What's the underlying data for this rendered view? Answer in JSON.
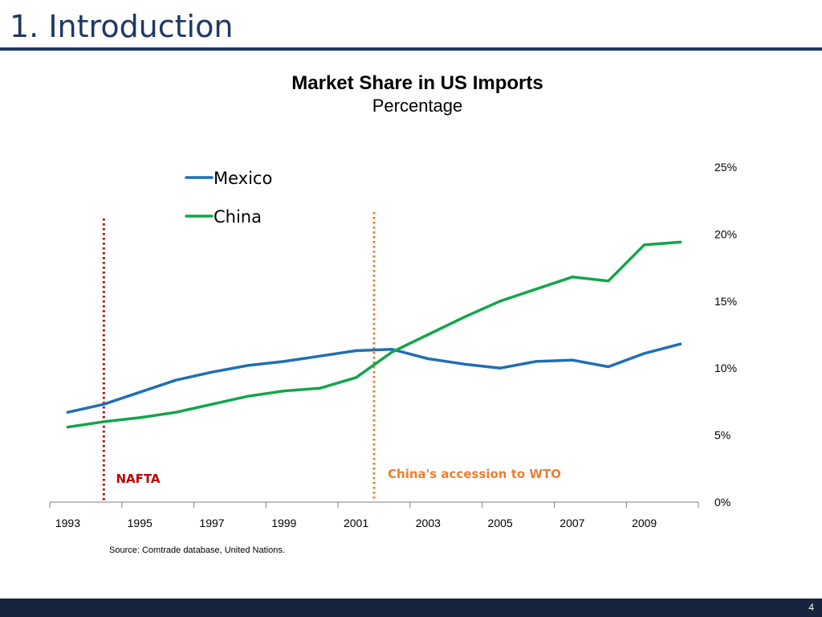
{
  "slide": {
    "title": "1. Introduction",
    "source": "Source: Comtrade database, United Nations.",
    "page_number": "4"
  },
  "colors": {
    "title": "#1f3864",
    "footer": "#16243d",
    "mexico": "#1f6fb4",
    "china": "#12a64a",
    "nafta": "#c00000",
    "wto": "#ed7d31"
  },
  "chart_data": {
    "type": "line",
    "title": "Market Share in US Imports",
    "subtitle": "Percentage",
    "x": [
      1993,
      1994,
      1995,
      1996,
      1997,
      1998,
      1999,
      2000,
      2001,
      2002,
      2003,
      2004,
      2005,
      2006,
      2007,
      2008,
      2009,
      2010
    ],
    "x_tick_labels": [
      "1993",
      "1995",
      "1997",
      "1999",
      "2001",
      "2003",
      "2005",
      "2007",
      "2009"
    ],
    "y_tick_labels": [
      "0%",
      "5%",
      "10%",
      "15%",
      "20%",
      "25%"
    ],
    "ylim": [
      0,
      25
    ],
    "y_axis_side": "right",
    "grid": false,
    "legend_position": "top-left",
    "series": [
      {
        "name": "Mexico",
        "color": "#1f6fb4",
        "values": [
          6.7,
          7.3,
          8.2,
          9.1,
          9.7,
          10.2,
          10.5,
          10.9,
          11.3,
          11.4,
          10.7,
          10.3,
          10.0,
          10.5,
          10.6,
          10.1,
          11.1,
          11.8
        ]
      },
      {
        "name": "China",
        "color": "#12a64a",
        "values": [
          5.6,
          6.0,
          6.3,
          6.7,
          7.3,
          7.9,
          8.3,
          8.5,
          9.3,
          11.2,
          12.5,
          13.8,
          15.0,
          15.9,
          16.8,
          16.5,
          19.2,
          19.4
        ]
      }
    ],
    "annotations": [
      {
        "label": "NAFTA",
        "x": 1994.0,
        "color": "#c00000"
      },
      {
        "label": "China's accession to WTO",
        "x": 2001.5,
        "color": "#ed7d31"
      }
    ]
  }
}
